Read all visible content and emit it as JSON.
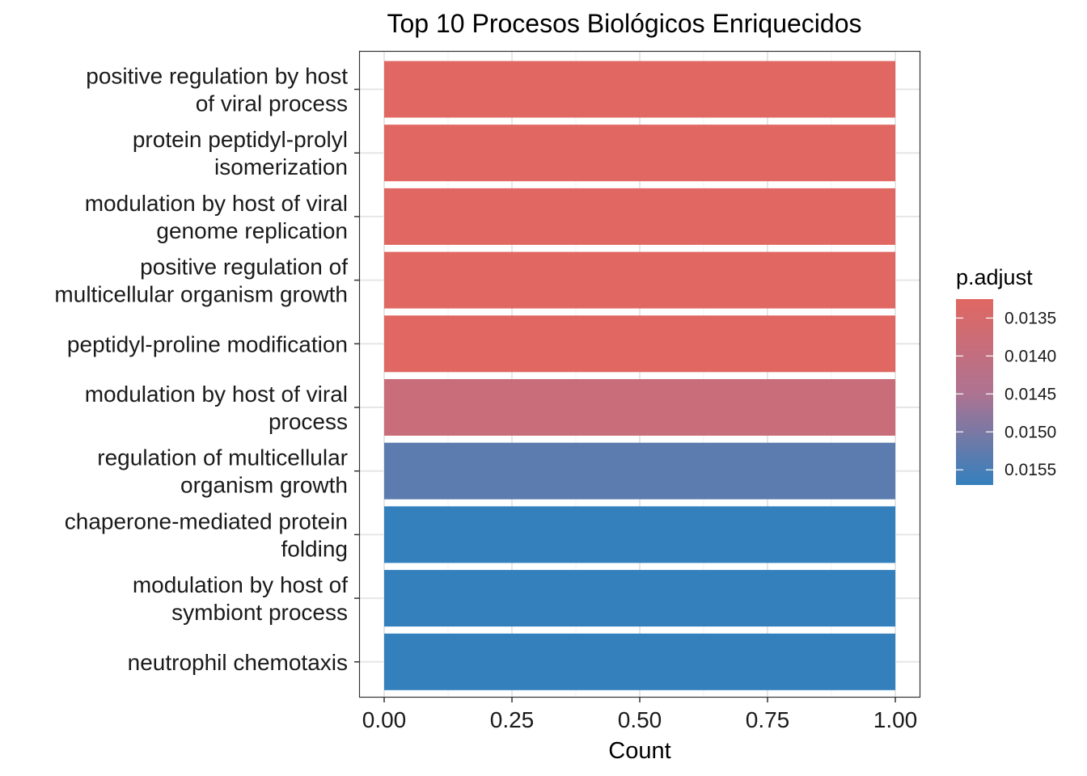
{
  "chart_data": {
    "type": "bar",
    "orientation": "horizontal",
    "title": "Top 10 Procesos Biológicos Enriquecidos",
    "xlabel": "Count",
    "ylabel": "",
    "xlim": [
      0,
      1
    ],
    "x_ticks": [
      "0.00",
      "0.25",
      "0.50",
      "0.75",
      "1.00"
    ],
    "grid": true,
    "categories": [
      [
        "positive regulation by host",
        "of viral process"
      ],
      [
        "protein peptidyl-prolyl",
        "isomerization"
      ],
      [
        "modulation by host of viral",
        "genome replication"
      ],
      [
        "positive regulation of",
        "multicellular organism growth"
      ],
      [
        "peptidyl-proline modification"
      ],
      [
        "modulation by host of viral",
        "process"
      ],
      [
        "regulation of multicellular",
        "organism growth"
      ],
      [
        "chaperone-mediated protein",
        "folding"
      ],
      [
        "modulation by host of",
        "symbiont process"
      ],
      [
        "neutrophil chemotaxis"
      ]
    ],
    "values": [
      1,
      1,
      1,
      1,
      1,
      1,
      1,
      1,
      1,
      1
    ],
    "p_adjust": [
      0.01325,
      0.01325,
      0.01325,
      0.01325,
      0.01325,
      0.01385,
      0.0153,
      0.0157,
      0.0157,
      0.0157
    ],
    "legend": {
      "title": "p.adjust",
      "placement": "right",
      "ticks": [
        "0.0135",
        "0.0140",
        "0.0145",
        "0.0150",
        "0.0155"
      ],
      "range": [
        0.01325,
        0.0157
      ],
      "low_color": "#e06762",
      "high_color": "#3480bd"
    }
  }
}
